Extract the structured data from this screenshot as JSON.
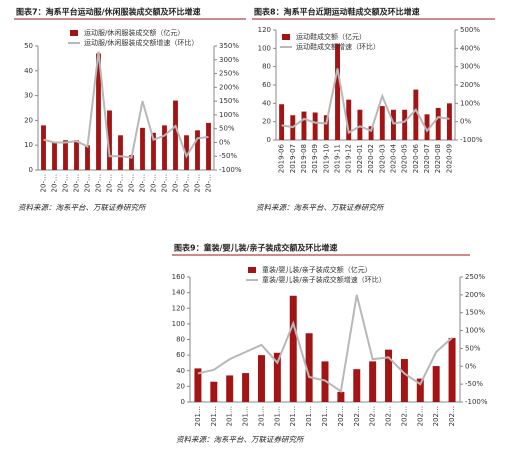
{
  "chart_data": [
    {
      "type": "bar_line",
      "title": "图表7：淘系平台运动服/休闲服装成交额及环比增速",
      "source": "资料来源：淘系平台、万联证券研究所",
      "categories": [
        "20-…",
        "20-…",
        "20-…",
        "20-…",
        "20-…",
        "20-…",
        "20-…",
        "20-…",
        "20-…",
        "20-…",
        "20-…",
        "20-…",
        "20-…",
        "20-…",
        "20-…",
        "20-…"
      ],
      "series": [
        {
          "name": "运动服/休闲服装成交额（亿元）",
          "color": "#a31515",
          "axis": "y",
          "kind": "bar",
          "values": [
            18,
            11,
            12,
            12,
            10,
            47,
            24,
            14,
            6,
            17,
            15,
            18,
            28,
            14,
            16,
            19
          ]
        },
        {
          "name": "运动服/休闲服装成交额增速（环比）",
          "color": "#b8b8b8",
          "axis": "y2",
          "kind": "line",
          "values": [
            10,
            0,
            0,
            5,
            -15,
            330,
            -50,
            -50,
            -55,
            150,
            10,
            25,
            60,
            -50,
            15,
            20
          ]
        }
      ],
      "ylim": [
        0,
        50
      ],
      "yticks": [
        0,
        10,
        20,
        30,
        40,
        50
      ],
      "y2lim": [
        -100,
        350
      ],
      "y2ticks": [
        {
          "value": -100,
          "label": "-100%"
        },
        {
          "value": -50,
          "label": "-50%"
        },
        {
          "value": 0,
          "label": "0%"
        },
        {
          "value": 50,
          "label": "50%"
        },
        {
          "value": 100,
          "label": "100%"
        },
        {
          "value": 150,
          "label": "150%"
        },
        {
          "value": 200,
          "label": "200%"
        },
        {
          "value": 250,
          "label": "250%"
        },
        {
          "value": 300,
          "label": "300%"
        },
        {
          "value": 350,
          "label": "350%"
        }
      ]
    },
    {
      "type": "bar_line",
      "title": "图表8：淘系平台近期运动鞋成交额及环比增速",
      "source": "资料来源：淘系平台、万联证券研究所",
      "categories": [
        "2019-06",
        "2019-07",
        "2019-08",
        "2019-09",
        "2019-10",
        "2019-11",
        "2019-12",
        "2020-01",
        "2020-02",
        "2020-03",
        "2020-04",
        "2020-05",
        "2020-06",
        "2020-07",
        "2020-08",
        "2020-09"
      ],
      "series": [
        {
          "name": "运动鞋成交额（亿元）",
          "color": "#a31515",
          "axis": "y",
          "kind": "bar",
          "values": [
            39,
            27,
            31,
            30,
            27,
            105,
            44,
            33,
            15,
            37,
            33,
            33,
            55,
            28,
            35,
            40
          ]
        },
        {
          "name": "运动鞋成交额增速（环比）",
          "color": "#b8b8b8",
          "axis": "y2",
          "kind": "line",
          "values": [
            -20,
            -30,
            15,
            -5,
            -10,
            290,
            -60,
            -25,
            -50,
            140,
            -10,
            0,
            65,
            -50,
            25,
            15
          ]
        }
      ],
      "ylim": [
        0,
        120
      ],
      "yticks": [
        0,
        20,
        40,
        60,
        80,
        100,
        120
      ],
      "y2lim": [
        -100,
        500
      ],
      "y2ticks": [
        {
          "value": -100,
          "label": "-100%"
        },
        {
          "value": 0,
          "label": "0%"
        },
        {
          "value": 100,
          "label": "100%"
        },
        {
          "value": 200,
          "label": "200%"
        },
        {
          "value": 300,
          "label": "300%"
        },
        {
          "value": 400,
          "label": "400%"
        },
        {
          "value": 500,
          "label": "500%"
        }
      ]
    },
    {
      "type": "bar_line",
      "title": "图表9：童装/婴儿装/亲子装成交额及环比增速",
      "source": "资料来源：淘系平台、万联证券研究所",
      "categories": [
        "201…",
        "201…",
        "201…",
        "201…",
        "201…",
        "201…",
        "201…",
        "201…",
        "201…",
        "202…",
        "202…",
        "202…",
        "202…",
        "202…",
        "202…",
        "202…",
        "202…"
      ],
      "series": [
        {
          "name": "童装/婴儿装/亲子装成交额（亿元）",
          "color": "#a31515",
          "axis": "y",
          "kind": "bar",
          "values": [
            43,
            26,
            34,
            37,
            60,
            63,
            136,
            88,
            52,
            13,
            42,
            52,
            67,
            55,
            30,
            46,
            82
          ]
        },
        {
          "name": "童装/婴儿装/亲子装成交额增速（环比）",
          "color": "#b8b8b8",
          "axis": "y2",
          "kind": "line",
          "values": [
            -20,
            -10,
            20,
            40,
            60,
            10,
            120,
            -30,
            -40,
            -70,
            200,
            20,
            25,
            -20,
            -50,
            40,
            80
          ]
        }
      ],
      "ylim": [
        0,
        160
      ],
      "yticks": [
        0,
        20,
        40,
        60,
        80,
        100,
        120,
        140,
        160
      ],
      "y2lim": [
        -100,
        250
      ],
      "y2ticks": [
        {
          "value": -100,
          "label": "-100%"
        },
        {
          "value": -50,
          "label": "-50%"
        },
        {
          "value": 0,
          "label": "0%"
        },
        {
          "value": 50,
          "label": "50%"
        },
        {
          "value": 100,
          "label": "100%"
        },
        {
          "value": 150,
          "label": "150%"
        },
        {
          "value": 200,
          "label": "200%"
        },
        {
          "value": 250,
          "label": "250%"
        }
      ]
    }
  ]
}
